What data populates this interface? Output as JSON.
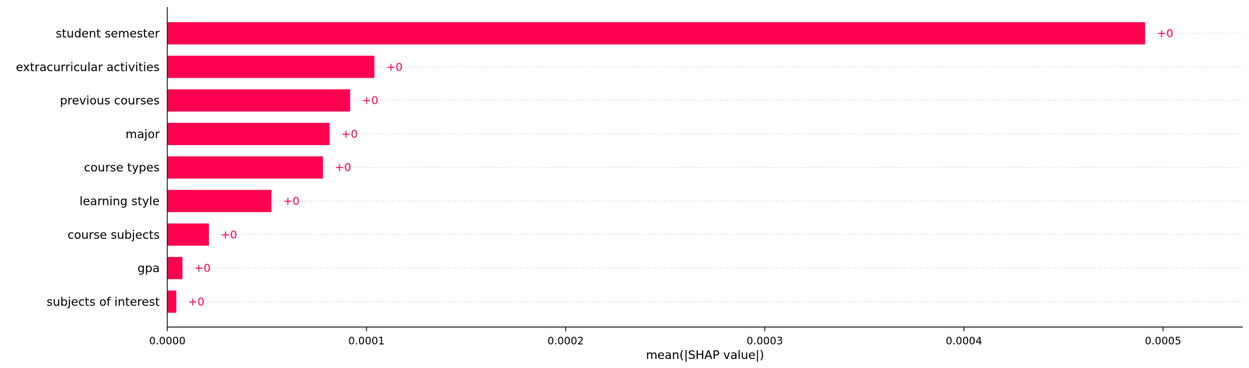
{
  "chart_data": {
    "type": "bar",
    "orientation": "horizontal",
    "title": "",
    "xlabel": "mean(|SHAP value|)",
    "ylabel": "",
    "xlim": [
      0,
      0.00054
    ],
    "xticks": [
      0,
      0.0001,
      0.0002,
      0.0003,
      0.0004,
      0.0005
    ],
    "xtick_labels": [
      "0.0000",
      "0.0001",
      "0.0002",
      "0.0003",
      "0.0004",
      "0.0005"
    ],
    "categories": [
      "student semester",
      "extracurricular activities",
      "previous courses",
      "major",
      "course types",
      "learning style",
      "course subjects",
      "gpa",
      "subjects of interest"
    ],
    "values": [
      0.000491,
      0.000104,
      9.18e-05,
      8.15e-05,
      7.82e-05,
      5.23e-05,
      2.09e-05,
      7.6e-06,
      4.5e-06
    ],
    "value_labels": [
      "+0",
      "+0",
      "+0",
      "+0",
      "+0",
      "+0",
      "+0",
      "+0",
      "+0"
    ],
    "grid": "dotted horizontal guide lines per row",
    "colors": {
      "bar": "#ff0051",
      "value_label": "#ff0051",
      "axis": "#000000",
      "grid": "#cccccc"
    }
  }
}
